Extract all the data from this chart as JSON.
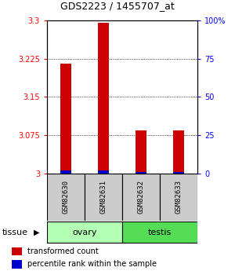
{
  "title": "GDS2223 / 1455707_at",
  "samples": [
    "GSM82630",
    "GSM82631",
    "GSM82632",
    "GSM82633"
  ],
  "red_values": [
    3.215,
    3.295,
    3.085,
    3.085
  ],
  "blue_values": [
    2.0,
    2.0,
    1.0,
    1.0
  ],
  "ylim_left": [
    3.0,
    3.3
  ],
  "ylim_right": [
    0,
    100
  ],
  "left_ticks": [
    3.0,
    3.075,
    3.15,
    3.225,
    3.3
  ],
  "right_ticks": [
    0,
    25,
    50,
    75,
    100
  ],
  "left_tick_labels": [
    "3",
    "3.075",
    "3.15",
    "3.225",
    "3.3"
  ],
  "right_tick_labels": [
    "0",
    "25",
    "50",
    "75",
    "100%"
  ],
  "tissue_groups": [
    {
      "label": "ovary",
      "samples": [
        0,
        1
      ],
      "color": "#b3ffb3"
    },
    {
      "label": "testis",
      "samples": [
        2,
        3
      ],
      "color": "#55dd55"
    }
  ],
  "red_color": "#cc0000",
  "blue_color": "#0000cc",
  "sample_box_color": "#cccccc",
  "tissue_label": "tissue"
}
